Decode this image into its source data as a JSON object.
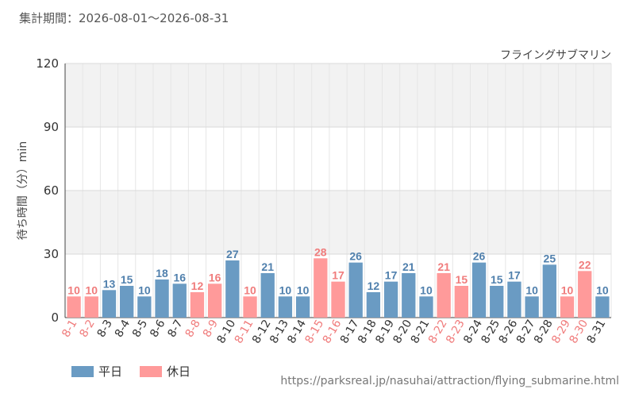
{
  "period": {
    "label": "集計期間：2026-08-01～2026-08-31"
  },
  "source_url": "https://parksreal.jp/nasuhai/attraction/flying_submarine.html",
  "colors": {
    "weekday": "#6a9bc3",
    "holiday": "#ff9a9a",
    "weekday_text": "#5080ad",
    "holiday_text": "#f07c7c"
  },
  "chart_data": {
    "type": "bar",
    "title": "フライングサブマリン",
    "ylabel": "待ち時間（分）min",
    "ylim": [
      0,
      120
    ],
    "yticks": [
      0,
      30,
      60,
      90,
      120
    ],
    "categories": [
      "8-1",
      "8-2",
      "8-3",
      "8-4",
      "8-5",
      "8-6",
      "8-7",
      "8-8",
      "8-9",
      "8-10",
      "8-11",
      "8-12",
      "8-13",
      "8-14",
      "8-15",
      "8-16",
      "8-17",
      "8-18",
      "8-19",
      "8-20",
      "8-21",
      "8-22",
      "8-23",
      "8-24",
      "8-25",
      "8-26",
      "8-27",
      "8-28",
      "8-29",
      "8-30",
      "8-31"
    ],
    "values": [
      10,
      10,
      13,
      15,
      10,
      18,
      16,
      12,
      16,
      27,
      10,
      21,
      10,
      10,
      28,
      17,
      26,
      12,
      17,
      21,
      10,
      21,
      15,
      26,
      15,
      17,
      10,
      25,
      10,
      22,
      10
    ],
    "day_type": [
      "h",
      "h",
      "w",
      "w",
      "w",
      "w",
      "w",
      "h",
      "h",
      "w",
      "h",
      "w",
      "w",
      "w",
      "h",
      "h",
      "w",
      "w",
      "w",
      "w",
      "w",
      "h",
      "h",
      "w",
      "w",
      "w",
      "w",
      "w",
      "h",
      "h",
      "w"
    ],
    "legend": [
      {
        "key": "w",
        "label": "平日"
      },
      {
        "key": "h",
        "label": "休日"
      }
    ],
    "grid": true
  }
}
